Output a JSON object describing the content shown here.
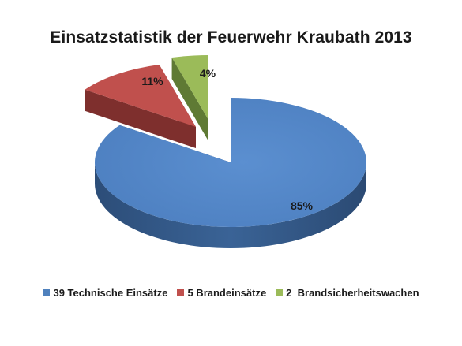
{
  "chart_data": {
    "type": "pie",
    "title": "Einsatzstatistik der Feuerwehr Kraubath 2013",
    "legend_position": "bottom",
    "slices": [
      {
        "label": "39 Technische Einsätze",
        "value": 39,
        "percent_label": "85%",
        "color": "#4F81BD"
      },
      {
        "label": "5 Brandeinsätze",
        "value": 5,
        "percent_label": "11%",
        "color": "#C0504D"
      },
      {
        "label": "2  Brandsicherheitswachen",
        "value": 2,
        "percent_label": "4%",
        "color": "#9BBB59"
      }
    ]
  }
}
